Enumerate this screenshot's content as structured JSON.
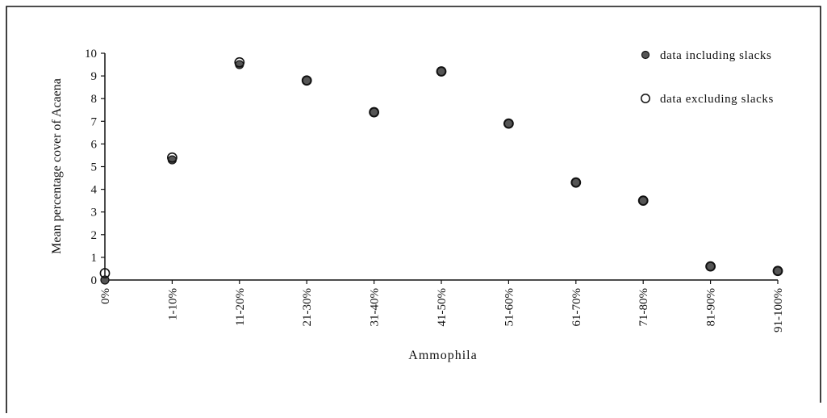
{
  "chart_data": {
    "type": "scatter",
    "title": "",
    "xlabel": "Ammophila",
    "ylabel": "Mean percentage cover of Acaena",
    "categories": [
      "0%",
      "1-10%",
      "11-20%",
      "21-30%",
      "31-40%",
      "41-50%",
      "51-60%",
      "61-70%",
      "71-80%",
      "81-90%",
      "91-100%"
    ],
    "ylim": [
      0,
      10
    ],
    "yticks": [
      "0",
      "1",
      "2",
      "3",
      "4",
      "5",
      "6",
      "7",
      "8",
      "9",
      "10"
    ],
    "grid": false,
    "legend_position": "top-right",
    "series": [
      {
        "name": "data including slacks",
        "marker": "filled-circle",
        "values": [
          0.0,
          5.3,
          9.5,
          8.8,
          7.4,
          9.2,
          6.9,
          4.3,
          3.5,
          0.6,
          0.4
        ]
      },
      {
        "name": "data excluding slacks",
        "marker": "open-circle",
        "values": [
          0.3,
          5.4,
          9.6,
          8.8,
          7.4,
          9.2,
          6.9,
          4.3,
          3.5,
          0.6,
          0.4
        ]
      }
    ]
  },
  "colors": {
    "marker_stroke": "#111111",
    "marker_fill_including": "#555555",
    "marker_fill_excluding": "#ffffff",
    "axis": "#111111",
    "frame": "#111111"
  }
}
